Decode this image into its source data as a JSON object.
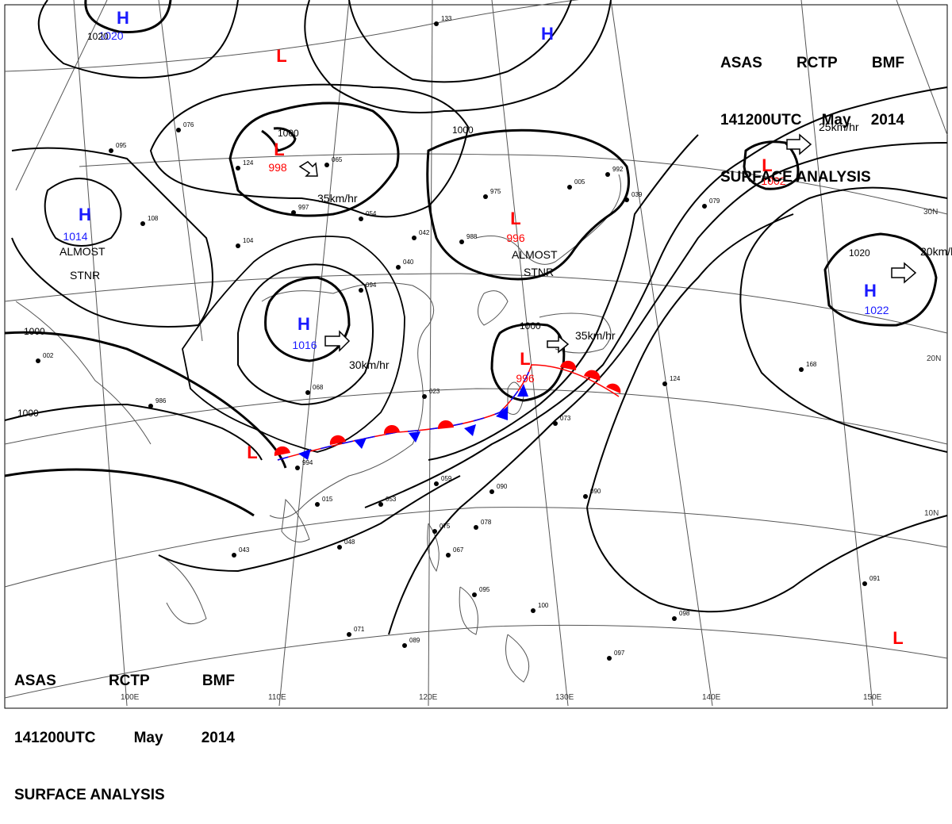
{
  "header": {
    "line1": [
      "ASAS",
      "RCTP",
      "BMF"
    ],
    "line2": [
      "141200UTC",
      "May",
      "2014"
    ],
    "line3": "SURFACE ANALYSIS"
  },
  "colors": {
    "high": "#1a1aff",
    "low": "#ff0000",
    "isobar": "#000000",
    "grid": "#444444"
  },
  "pressure_centers": [
    {
      "type": "H",
      "value": "1020"
    },
    {
      "type": "H",
      "value": ""
    },
    {
      "type": "L",
      "value": ""
    },
    {
      "type": "L",
      "value": "998"
    },
    {
      "type": "H",
      "value": "1014"
    },
    {
      "type": "L",
      "value": "996"
    },
    {
      "type": "H",
      "value": "1016"
    },
    {
      "type": "L",
      "value": "996"
    },
    {
      "type": "L",
      "value": "1002"
    },
    {
      "type": "H",
      "value": "1022"
    },
    {
      "type": "L",
      "value": ""
    },
    {
      "type": "L",
      "value": ""
    }
  ],
  "isobar_labels": [
    "1020",
    "1000",
    "1000",
    "1000",
    "1000",
    "1000",
    "1020"
  ],
  "motion_labels": [
    "35km/hr",
    "30km/hr",
    "35km/hr",
    "25km/hr",
    "20km/hr"
  ],
  "notes": [
    "ALMOST",
    "STNR",
    "ALMOST",
    "STNR"
  ],
  "longitude_labels": [
    "100E",
    "110E",
    "120E",
    "130E",
    "140E",
    "150E"
  ],
  "latitude_labels": [
    "30N",
    "20N",
    "10N"
  ],
  "station_values": [
    "124",
    "997",
    "065",
    "054",
    "104",
    "094",
    "040",
    "042",
    "988",
    "975",
    "005",
    "992",
    "039",
    "079",
    "073",
    "023",
    "068",
    "986",
    "994",
    "015",
    "043",
    "048",
    "053",
    "059",
    "090",
    "090",
    "075",
    "078",
    "095",
    "100",
    "098",
    "097",
    "089",
    "124",
    "168",
    "067",
    "091",
    "071",
    "076",
    "095",
    "108",
    "133",
    "002"
  ]
}
